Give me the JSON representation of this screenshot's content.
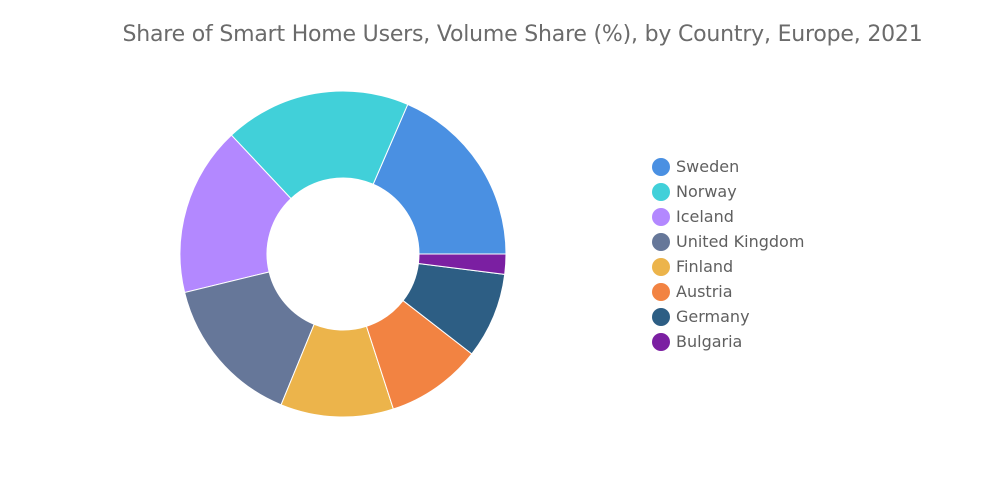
{
  "chart_data": {
    "type": "pie",
    "title": "Share of Smart Home Users, Volume Share (%), by Country, Europe, 2021",
    "categories": [
      "Sweden",
      "Norway",
      "Iceland",
      "United Kingdom",
      "Finland",
      "Austria",
      "Germany",
      "Bulgaria"
    ],
    "values": [
      18.5,
      18.5,
      16.8,
      15.0,
      11.2,
      9.5,
      8.5,
      2.0
    ],
    "colors": [
      "#4a90e2",
      "#41d0d9",
      "#b388ff",
      "#667799",
      "#ecb44b",
      "#f28342",
      "#2d5e84",
      "#7b1fa2"
    ],
    "donut": true,
    "legend_position": "right"
  }
}
